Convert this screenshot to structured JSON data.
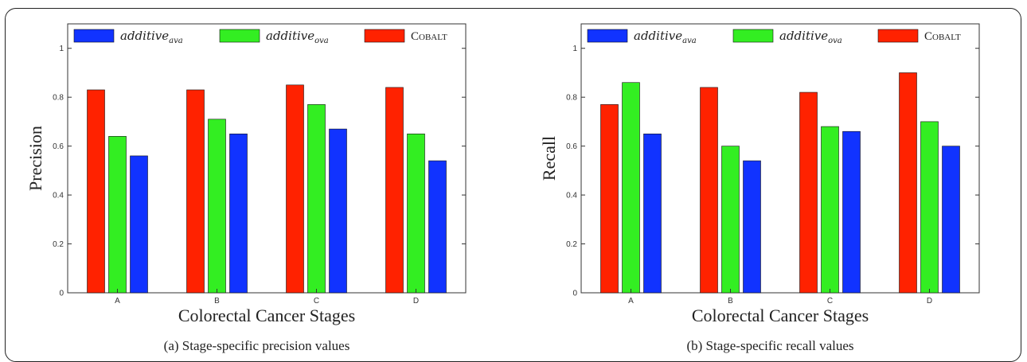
{
  "chart_data": [
    {
      "type": "bar",
      "categories": [
        "A",
        "B",
        "C",
        "D"
      ],
      "series": [
        {
          "name": "COBALT",
          "label_main": "COBALT",
          "label_sub": "",
          "color": "#ff2200",
          "values": [
            0.83,
            0.83,
            0.85,
            0.84
          ]
        },
        {
          "name": "additive_ova",
          "label_main": "additive",
          "label_sub": "ova",
          "color": "#33ee22",
          "values": [
            0.64,
            0.71,
            0.77,
            0.65
          ]
        },
        {
          "name": "additive_ava",
          "label_main": "additive",
          "label_sub": "ava",
          "color": "#1133ff",
          "values": [
            0.56,
            0.65,
            0.67,
            0.54
          ]
        }
      ],
      "legend_order": [
        2,
        1,
        0
      ],
      "title": "",
      "xlabel": "Colorectal Cancer Stages",
      "ylabel": "Precision",
      "ylim": [
        0,
        1.1
      ],
      "yticks": [
        "0",
        "0.2",
        "0.4",
        "0.6",
        "0.8",
        "1"
      ],
      "caption": "(a) Stage-specific precision values",
      "legend_position": "top"
    },
    {
      "type": "bar",
      "categories": [
        "A",
        "B",
        "C",
        "D"
      ],
      "series": [
        {
          "name": "COBALT",
          "label_main": "COBALT",
          "label_sub": "",
          "color": "#ff2200",
          "values": [
            0.77,
            0.84,
            0.82,
            0.9
          ]
        },
        {
          "name": "additive_ova",
          "label_main": "additive",
          "label_sub": "ova",
          "color": "#33ee22",
          "values": [
            0.86,
            0.6,
            0.68,
            0.7
          ]
        },
        {
          "name": "additive_ava",
          "label_main": "additive",
          "label_sub": "ava",
          "color": "#1133ff",
          "values": [
            0.65,
            0.54,
            0.66,
            0.6
          ]
        }
      ],
      "legend_order": [
        2,
        1,
        0
      ],
      "title": "",
      "xlabel": "Colorectal Cancer Stages",
      "ylabel": "Recall",
      "ylim": [
        0,
        1.1
      ],
      "yticks": [
        "0",
        "0.2",
        "0.4",
        "0.6",
        "0.8",
        "1"
      ],
      "caption": "(b) Stage-specific recall values",
      "legend_position": "top"
    }
  ]
}
